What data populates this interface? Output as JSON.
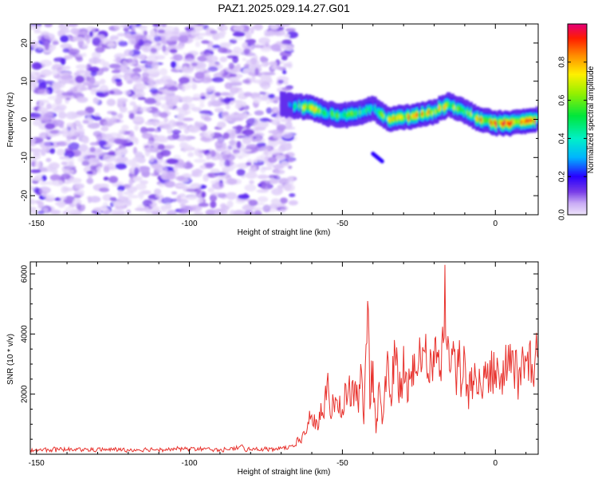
{
  "chart_data": [
    {
      "type": "heatmap",
      "title": "PAZ1.2025.029.14.27.G01",
      "xlabel": "Height of straight line (km)",
      "ylabel": "Frequency (Hz)",
      "xlim": [
        -152,
        14
      ],
      "ylim": [
        -25,
        25
      ],
      "xticks": [
        -150,
        -100,
        -50,
        0
      ],
      "yticks": [
        -20,
        -10,
        0,
        10,
        20
      ],
      "colorbar": {
        "label": "Normalized spectral amplitude",
        "range": [
          0,
          1
        ],
        "ticks": [
          "0.0",
          "0.2",
          "0.4",
          "0.6",
          "0.8"
        ],
        "tick_values": [
          0.0,
          0.2,
          0.4,
          0.6,
          0.8
        ]
      },
      "noise_region": {
        "x_range": [
          -152,
          -66
        ],
        "amplitude_range": [
          0.0,
          0.2
        ]
      },
      "ridge": {
        "x": [
          -70,
          -65,
          -60,
          -55,
          -50,
          -45,
          -40,
          -35,
          -30,
          -25,
          -20,
          -15,
          -10,
          -5,
          0,
          5,
          10,
          14
        ],
        "freq": [
          4.0,
          3.5,
          3.0,
          1.5,
          1.0,
          1.5,
          3.0,
          0.0,
          0.5,
          1.0,
          2.0,
          4.0,
          2.0,
          0.0,
          -1.0,
          -1.0,
          -0.5,
          0.0
        ],
        "amp": [
          0.15,
          0.5,
          0.85,
          0.55,
          0.6,
          0.6,
          0.45,
          0.7,
          0.9,
          0.9,
          0.8,
          0.75,
          0.6,
          0.85,
          0.9,
          0.95,
          1.0,
          0.8
        ]
      },
      "secondary_feature": {
        "x": [
          -40,
          -37
        ],
        "freq": [
          -9,
          -11
        ],
        "amp": 0.2
      }
    },
    {
      "type": "line",
      "xlabel": "Height of straight line (km)",
      "ylabel": "SNR (10 * v/v)",
      "xlim": [
        -152,
        14
      ],
      "ylim": [
        0,
        6400
      ],
      "xticks": [
        -150,
        -100,
        -50,
        0
      ],
      "yticks": [
        2000,
        4000,
        6000
      ],
      "series": [
        {
          "name": "SNR",
          "color": "#e8322d",
          "x": [
            -152,
            -140,
            -120,
            -100,
            -90,
            -84,
            -83,
            -82,
            -80,
            -75,
            -70,
            -66,
            -64,
            -62,
            -61,
            -60,
            -58,
            -57,
            -56,
            -55,
            -54,
            -52,
            -50,
            -48,
            -46,
            -45,
            -44,
            -43,
            -42,
            -41.5,
            -41,
            -40,
            -39,
            -38,
            -37,
            -36,
            -35,
            -34,
            -33,
            -32,
            -31,
            -30,
            -29,
            -28,
            -27,
            -26,
            -25,
            -24,
            -23,
            -22,
            -21,
            -20,
            -19,
            -18,
            -17,
            -16.5,
            -16,
            -15,
            -14,
            -13,
            -12,
            -11,
            -10,
            -9,
            -8,
            -7,
            -6,
            -5,
            -4,
            -3,
            -2,
            -1,
            0,
            2,
            4,
            6,
            8,
            10,
            12,
            14
          ],
          "y": [
            150,
            160,
            150,
            180,
            150,
            200,
            300,
            150,
            160,
            170,
            200,
            250,
            500,
            700,
            1000,
            1300,
            800,
            1700,
            1200,
            2400,
            1300,
            1800,
            1500,
            2200,
            2300,
            1800,
            3000,
            1000,
            3700,
            4800,
            1500,
            3100,
            700,
            2400,
            1000,
            2600,
            3100,
            1600,
            3800,
            3100,
            1900,
            3600,
            2700,
            2500,
            3300,
            2700,
            3100,
            2900,
            3400,
            2700,
            3300,
            2900,
            3400,
            2800,
            3700,
            6300,
            3700,
            2800,
            3300,
            2700,
            2900,
            2300,
            3300,
            2300,
            2100,
            2300,
            2000,
            2400,
            2200,
            2500,
            2400,
            2600,
            2800,
            2700,
            2900,
            2800,
            2900,
            3100,
            3000,
            3200
          ]
        }
      ]
    }
  ]
}
